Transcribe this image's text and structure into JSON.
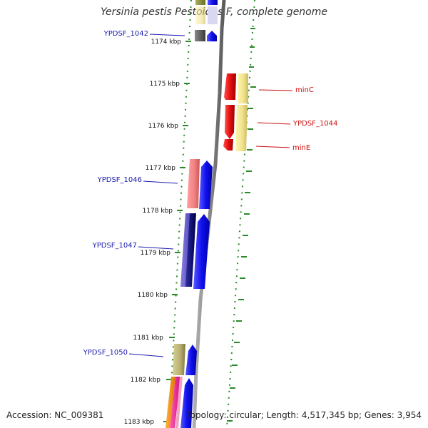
{
  "title": "Yersinia pestis Pestoides F, complete genome",
  "footer": {
    "accession": "Accession: NC_009381",
    "topology": "Topology: circular; Length: 4,517,345 bp; Genes: 3,954"
  },
  "ruler": {
    "ticks": [
      "1174 kbp",
      "1175 kbp",
      "1176 kbp",
      "1177 kbp",
      "1178 kbp",
      "1179 kbp",
      "1180 kbp",
      "1181 kbp",
      "1182 kbp",
      "1183 kbp"
    ]
  },
  "gene_labels": {
    "left": [
      "YPDSF_1042",
      "YPDSF_1046",
      "YPDSF_1047",
      "YPDSF_1050"
    ],
    "right": [
      "minC",
      "YPDSF_1044",
      "minE"
    ]
  },
  "colors": {
    "forward_gene": "#1010ee",
    "reverse_gene": "#e01010",
    "left_label": "#1a1ab0",
    "right_label": "#cc1010",
    "ruler_dots": "#2a8a2a",
    "backbone": "#8a8a8a"
  }
}
